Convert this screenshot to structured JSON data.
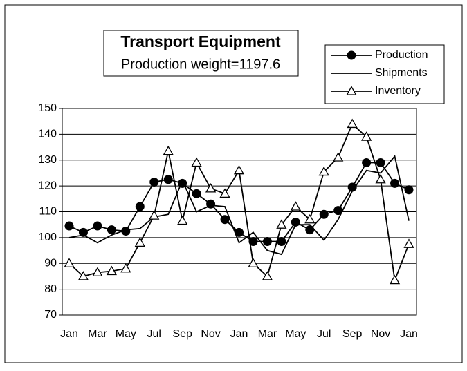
{
  "chart_data": {
    "type": "line",
    "title": "Transport Equipment",
    "subtitle": "Production weight=1197.6",
    "categories": [
      "Jan",
      null,
      "Mar",
      null,
      "May",
      null,
      "Jul",
      null,
      "Sep",
      null,
      "Nov",
      null,
      "Jan",
      null,
      "Mar",
      null,
      "May",
      null,
      "Jul",
      null,
      "Sep",
      null,
      "Nov",
      null,
      "Jan"
    ],
    "series": [
      {
        "name": "Production",
        "color": "#000000",
        "marker": "circle",
        "values": [
          104.5,
          102,
          104.5,
          103,
          102.5,
          112,
          121.5,
          122.5,
          121,
          117,
          113,
          107,
          102,
          98.5,
          98.5,
          98.5,
          106,
          103,
          109,
          110.5,
          119.5,
          129,
          129,
          121,
          118.5
        ]
      },
      {
        "name": "Shipments",
        "color": "#000000",
        "marker": "none",
        "values": [
          100,
          101,
          98,
          101,
          103,
          103.5,
          108,
          109,
          122,
          110,
          112.5,
          112,
          98,
          102,
          95,
          93.5,
          105,
          105,
          99,
          107,
          118,
          126,
          125,
          131.5,
          106.5
        ]
      },
      {
        "name": "Inventory",
        "color": "#000000",
        "marker": "triangle",
        "values": [
          90,
          85,
          86.5,
          87,
          88,
          98,
          108.5,
          133.5,
          106.5,
          129,
          119,
          117,
          126,
          90,
          85,
          105,
          112,
          107,
          125.5,
          131,
          144,
          139,
          122.5,
          83.5,
          97.5
        ]
      }
    ],
    "ylim": [
      70,
      150
    ],
    "yticks": [
      70,
      80,
      90,
      100,
      110,
      120,
      130,
      140,
      150
    ],
    "grid": true,
    "legend": "top-right"
  }
}
